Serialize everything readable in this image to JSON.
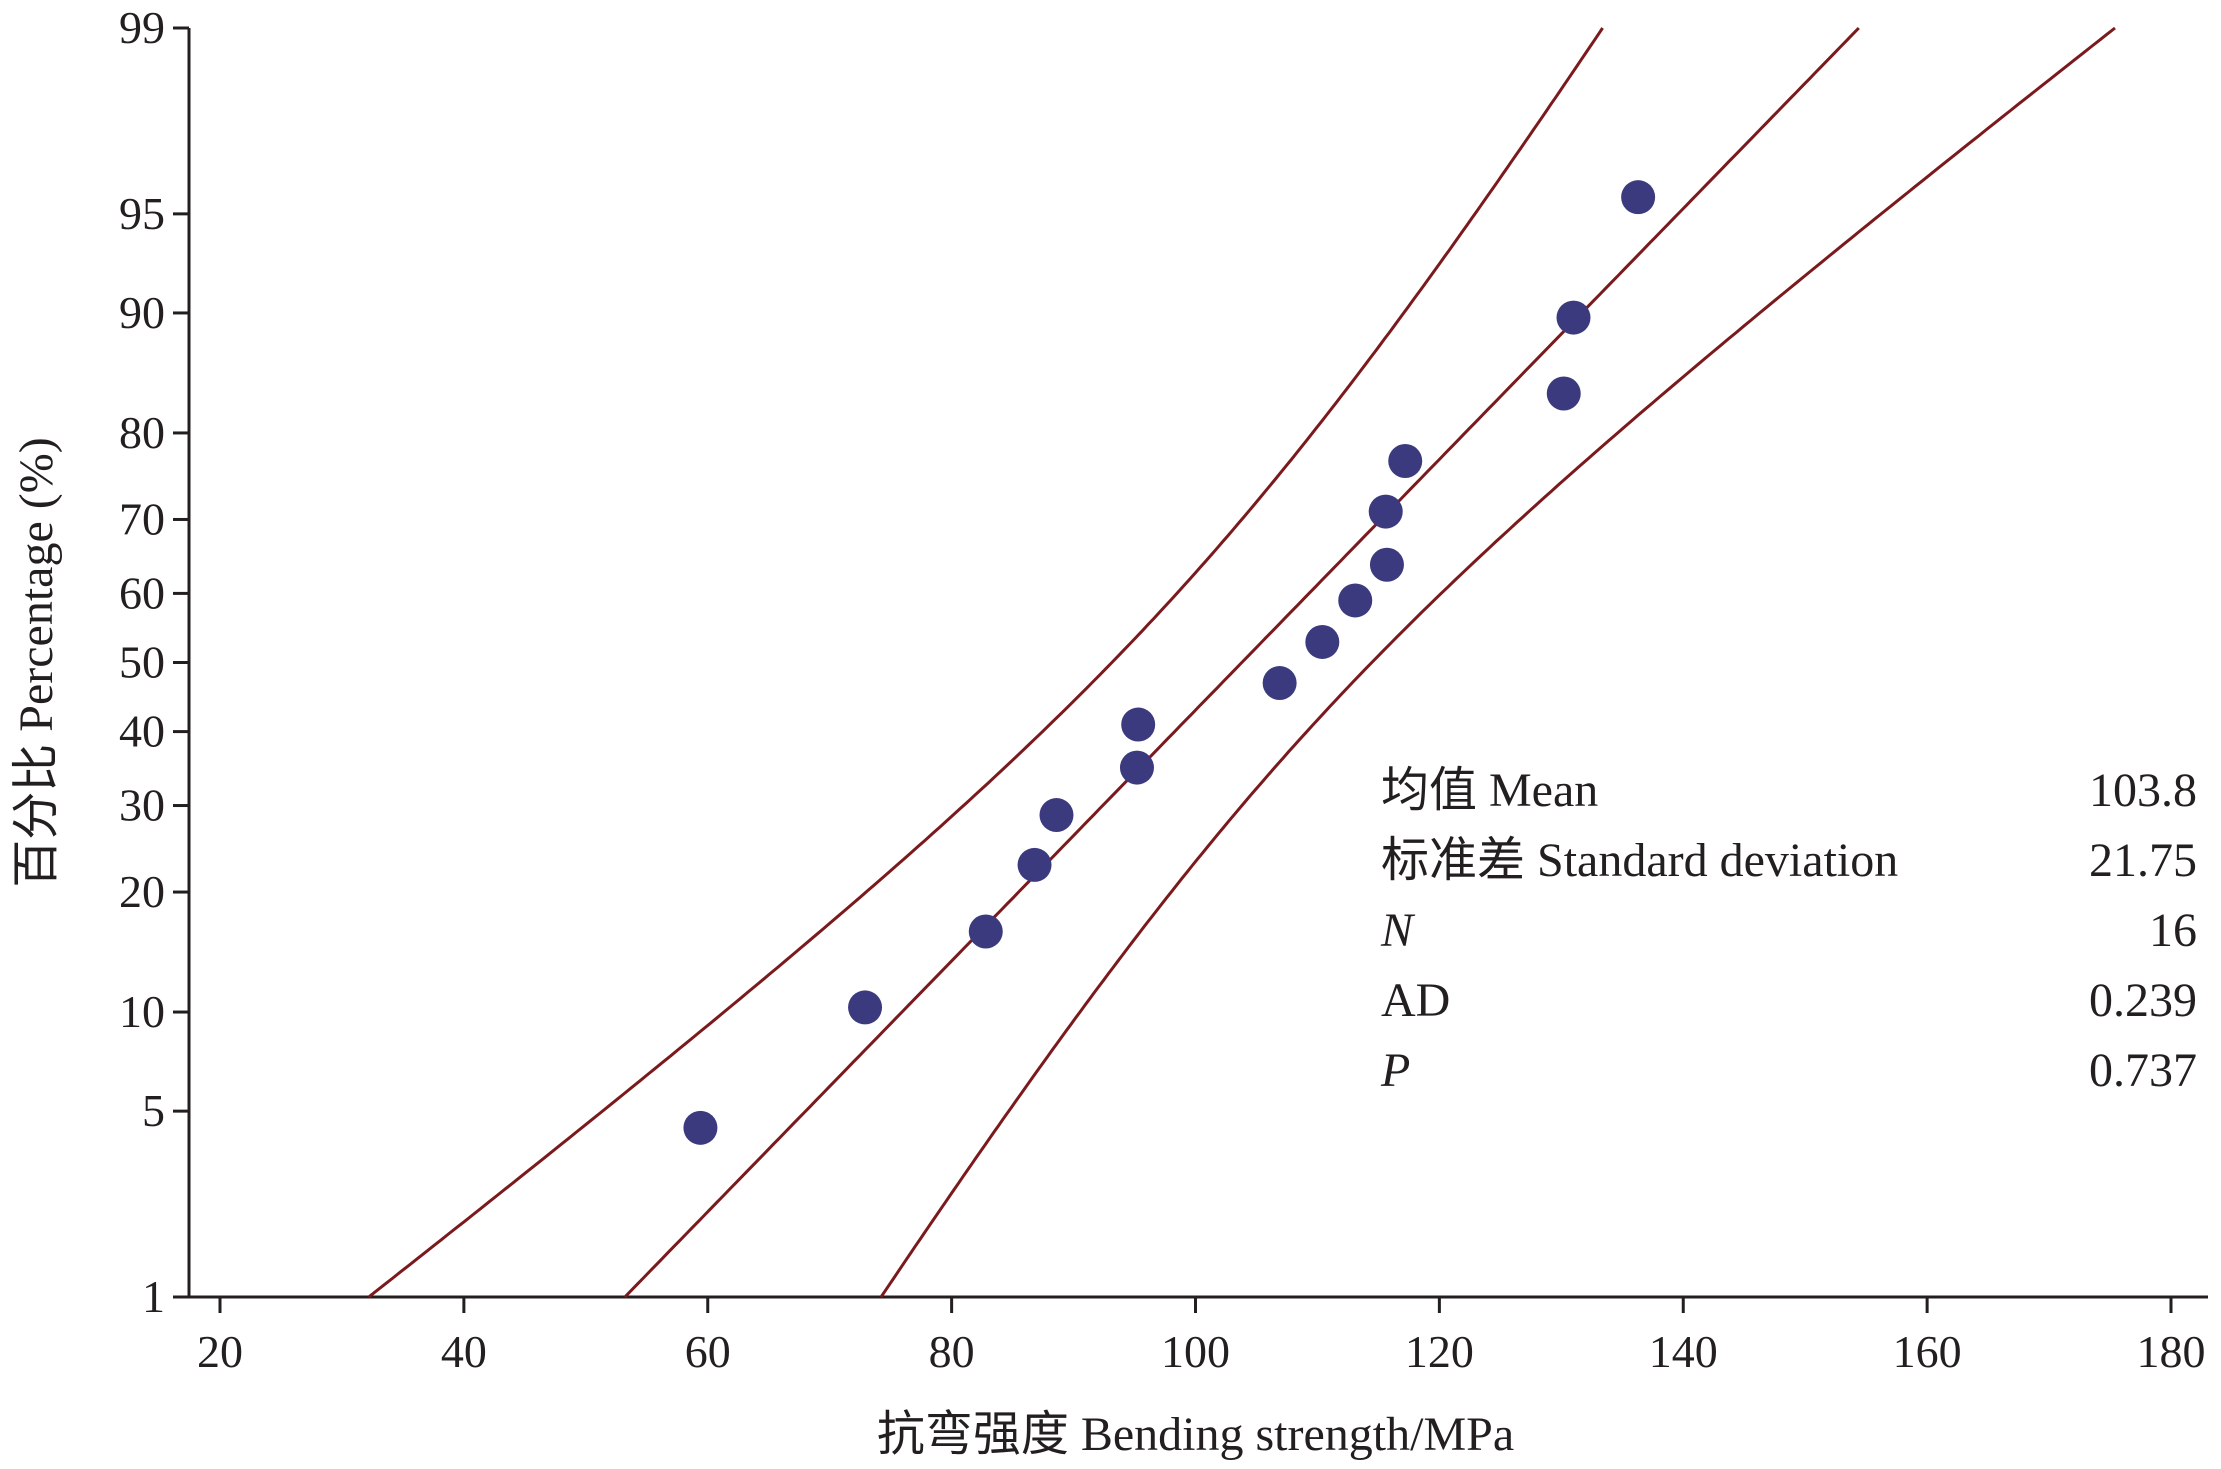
{
  "chart_data": {
    "type": "scatter",
    "subtype": "normal-probability-plot",
    "xlabel": "抗弯强度 Bending strength/MPa",
    "ylabel": "百分比 Percentage (%)",
    "xlim": [
      20,
      180
    ],
    "ylim": [
      1,
      99
    ],
    "x_ticks": [
      20,
      40,
      60,
      80,
      100,
      120,
      140,
      160,
      180
    ],
    "y_ticks": [
      1,
      5,
      10,
      20,
      30,
      40,
      50,
      60,
      70,
      80,
      90,
      95,
      99
    ],
    "points": [
      {
        "x": 59.4,
        "y": 4.4
      },
      {
        "x": 72.9,
        "y": 10.3
      },
      {
        "x": 82.8,
        "y": 16.2
      },
      {
        "x": 86.8,
        "y": 22.9
      },
      {
        "x": 88.6,
        "y": 28.8
      },
      {
        "x": 95.2,
        "y": 35.0
      },
      {
        "x": 95.3,
        "y": 41.0
      },
      {
        "x": 106.9,
        "y": 47.0
      },
      {
        "x": 110.4,
        "y": 53.0
      },
      {
        "x": 113.1,
        "y": 59.0
      },
      {
        "x": 115.7,
        "y": 64.0
      },
      {
        "x": 115.6,
        "y": 71.0
      },
      {
        "x": 117.2,
        "y": 77.0
      },
      {
        "x": 130.2,
        "y": 83.8
      },
      {
        "x": 131.0,
        "y": 89.7
      },
      {
        "x": 136.3,
        "y": 95.6
      }
    ],
    "fit_line": {
      "mean": 103.8,
      "sd": 21.75
    },
    "confidence_band": {
      "level": 0.95,
      "n": 16
    },
    "stats": [
      {
        "label": "均值 Mean",
        "value": "103.8",
        "italic": false
      },
      {
        "label": "标准差 Standard deviation",
        "value": "21.75",
        "italic": false
      },
      {
        "label": "N",
        "value": "16",
        "italic": true
      },
      {
        "label": "AD",
        "value": "0.239",
        "italic": false
      },
      {
        "label": "P",
        "value": "0.737",
        "italic": true
      }
    ],
    "colors": {
      "point": "#3b3a7e",
      "line": "#7b1a1d",
      "axis": "#231f20"
    }
  }
}
